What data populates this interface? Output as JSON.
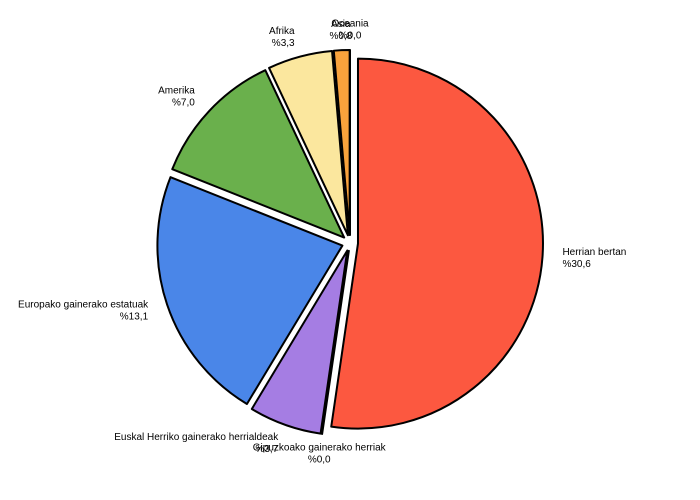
{
  "chart_data": {
    "type": "pie",
    "categories": [
      "Herrian bertan",
      "Gipuzkoako gainerako herriak",
      "Euskal Herriko gainerako herrialdeak",
      "Europako gainerako estatuak",
      "Amerika",
      "Afrika",
      "Asia",
      "Oceania"
    ],
    "values": [
      30.6,
      0.0,
      3.7,
      13.1,
      7.0,
      3.3,
      0.8,
      0.0
    ],
    "value_labels": [
      "%30,6",
      "%0,0",
      "%3,7",
      "%13,1",
      "%7,0",
      "%3,3",
      "%0,8",
      "%0,0"
    ],
    "colors": [
      "#fc5840",
      "#f2f2f2",
      "#a57de3",
      "#4a86e8",
      "#6ab04c",
      "#fbe79e",
      "#f9a33c",
      "#f2f2f2"
    ]
  }
}
